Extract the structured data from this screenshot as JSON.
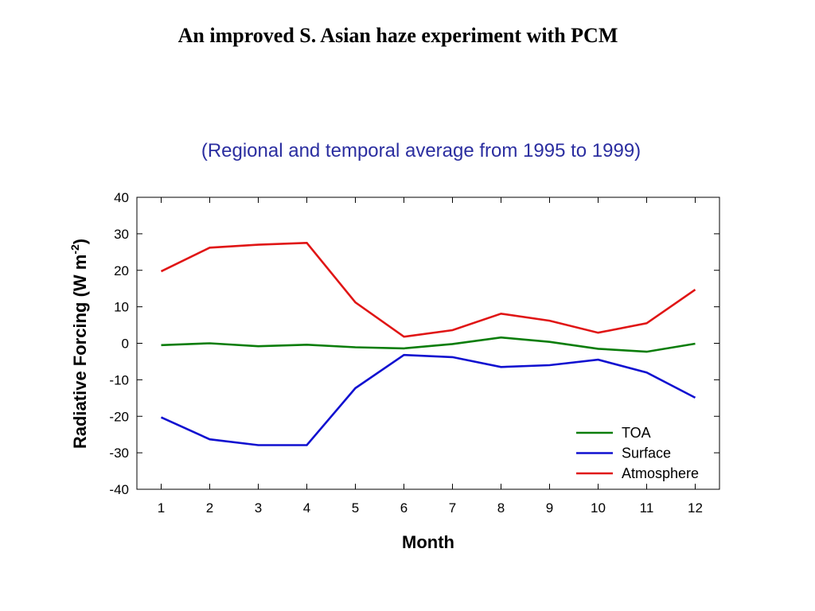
{
  "page": {
    "title": "An improved S. Asian haze experiment with PCM"
  },
  "chart_data": {
    "type": "line",
    "subtitle": "(Regional and temporal average from 1995 to 1999)",
    "xlabel": "Month",
    "ylabel_main": "Radiative Forcing (W m",
    "ylabel_sup": "-2",
    "ylabel_end": ")",
    "x": [
      1,
      2,
      3,
      4,
      5,
      6,
      7,
      8,
      9,
      10,
      11,
      12
    ],
    "x_ticks": [
      "1",
      "2",
      "3",
      "4",
      "5",
      "6",
      "7",
      "8",
      "9",
      "10",
      "11",
      "12"
    ],
    "y_ticks": [
      "40",
      "30",
      "20",
      "10",
      "0",
      "-10",
      "-20",
      "-30",
      "-40"
    ],
    "ylim": [
      -40,
      40
    ],
    "xlim": [
      0.5,
      12.5
    ],
    "legend_position": "bottom-right",
    "series": [
      {
        "name": "TOA",
        "color": "#0a7d0a",
        "values": [
          -0.5,
          0,
          -0.8,
          -0.4,
          -1.1,
          -1.4,
          -0.2,
          1.6,
          0.4,
          -1.5,
          -2.3,
          -0.1
        ]
      },
      {
        "name": "Surface",
        "color": "#1010d0",
        "values": [
          -20.3,
          -26.3,
          -27.9,
          -27.9,
          -12.3,
          -3.2,
          -3.8,
          -6.5,
          -6.0,
          -4.5,
          -8.0,
          -14.9
        ]
      },
      {
        "name": "Atmosphere",
        "color": "#e01515",
        "values": [
          19.7,
          26.2,
          27.0,
          27.5,
          11.2,
          1.8,
          3.6,
          8.1,
          6.2,
          2.9,
          5.5,
          14.7
        ]
      }
    ]
  }
}
